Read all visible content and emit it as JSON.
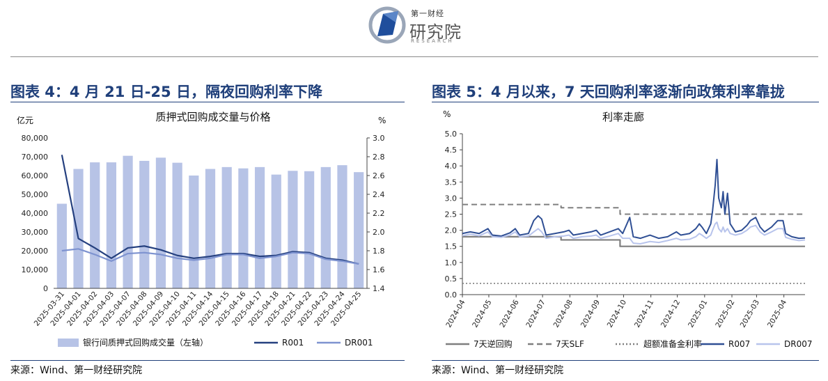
{
  "header": {
    "logo_small": "第一财经",
    "logo_big": "研究院",
    "logo_en": "RESEARCH"
  },
  "panels": [
    {
      "title": "图表 4：4 月 21 日-25 日，隔夜回购利率下降",
      "source": "来源：Wind、第一财经研究院"
    },
    {
      "title": "图表 5：4 月以来，7 天回购利率逐渐向政策利率靠拢",
      "source": "来源：Wind、第一财经研究院"
    }
  ],
  "chart_data": [
    {
      "type": "bar",
      "title": "质押式回购成交量与价格",
      "ylabel_left": "亿元",
      "ylabel_right": "%",
      "categories": [
        "2025-03-31",
        "2025-04-01",
        "2025-04-02",
        "2025-04-03",
        "2025-04-07",
        "2025-04-08",
        "2025-04-09",
        "2025-04-10",
        "2025-04-11",
        "2025-04-14",
        "2025-04-15",
        "2025-04-16",
        "2025-04-17",
        "2025-04-18",
        "2025-04-21",
        "2025-04-22",
        "2025-04-23",
        "2025-04-24",
        "2025-04-25"
      ],
      "ylim_left": [
        0,
        80000
      ],
      "yticks_left": [
        "0",
        "10,000",
        "20,000",
        "30,000",
        "40,000",
        "50,000",
        "60,000",
        "70,000",
        "80,000"
      ],
      "ylim_right": [
        1.4,
        3.0
      ],
      "yticks_right": [
        "1.4",
        "1.6",
        "1.8",
        "2.0",
        "2.2",
        "2.4",
        "2.6",
        "2.8",
        "3.0"
      ],
      "series": [
        {
          "name": "银行间质押式回购成交量（左轴）",
          "axis": "left",
          "kind": "bar",
          "color": "#b7c3e6",
          "values": [
            45000,
            63500,
            67000,
            67000,
            70500,
            67800,
            69500,
            66800,
            60000,
            63500,
            64500,
            63800,
            64500,
            60500,
            62500,
            62300,
            64500,
            65500,
            61800
          ]
        },
        {
          "name": "R001",
          "axis": "right",
          "kind": "line",
          "color": "#25407f",
          "values": [
            2.82,
            1.93,
            1.83,
            1.72,
            1.83,
            1.85,
            1.81,
            1.75,
            1.72,
            1.74,
            1.77,
            1.77,
            1.74,
            1.75,
            1.79,
            1.78,
            1.72,
            1.7,
            1.66
          ]
        },
        {
          "name": "DR001",
          "axis": "right",
          "kind": "line",
          "color": "#7e93d0",
          "values": [
            1.8,
            1.82,
            1.76,
            1.69,
            1.77,
            1.78,
            1.76,
            1.72,
            1.7,
            1.72,
            1.76,
            1.76,
            1.72,
            1.74,
            1.78,
            1.77,
            1.71,
            1.69,
            1.66
          ]
        }
      ],
      "legend_position": "bottom"
    },
    {
      "type": "line",
      "title": "利率走廊",
      "ylabel": "%",
      "ylim": [
        0,
        5.0
      ],
      "yticks": [
        "0.0",
        "0.5",
        "1.0",
        "1.5",
        "2.0",
        "2.5",
        "3.0",
        "3.5",
        "4.0",
        "4.5",
        "5.0"
      ],
      "xlim": [
        "2024-04-01",
        "2025-04-25"
      ],
      "xticks": [
        "2024-04",
        "2024-05",
        "2024-06",
        "2024-07",
        "2024-08",
        "2024-09",
        "2024-10",
        "2024-11",
        "2024-12",
        "2025-01",
        "2025-02",
        "2025-03",
        "2025-04"
      ],
      "series": [
        {
          "name": "7天逆回购",
          "style": "solid",
          "color": "#7f7f7f",
          "points": [
            [
              "2024-04-01",
              1.8
            ],
            [
              "2024-07-22",
              1.8
            ],
            [
              "2024-07-22",
              1.7
            ],
            [
              "2024-09-27",
              1.7
            ],
            [
              "2024-09-27",
              1.5
            ],
            [
              "2025-04-25",
              1.5
            ]
          ]
        },
        {
          "name": "7天SLF",
          "style": "dashed",
          "color": "#7f7f7f",
          "points": [
            [
              "2024-04-01",
              2.8
            ],
            [
              "2024-07-22",
              2.8
            ],
            [
              "2024-07-22",
              2.7
            ],
            [
              "2024-09-27",
              2.7
            ],
            [
              "2024-09-27",
              2.5
            ],
            [
              "2025-04-25",
              2.5
            ]
          ]
        },
        {
          "name": "超额准备金利率",
          "style": "dotted",
          "color": "#7f7f7f",
          "points": [
            [
              "2024-04-01",
              0.35
            ],
            [
              "2025-04-25",
              0.35
            ]
          ]
        },
        {
          "name": "R007",
          "style": "solid",
          "color": "#2f4f94",
          "points": [
            [
              "2024-04-01",
              1.9
            ],
            [
              "2024-04-10",
              1.95
            ],
            [
              "2024-04-20",
              1.9
            ],
            [
              "2024-04-30",
              2.05
            ],
            [
              "2024-05-05",
              1.85
            ],
            [
              "2024-05-15",
              1.82
            ],
            [
              "2024-05-25",
              1.92
            ],
            [
              "2024-05-31",
              2.05
            ],
            [
              "2024-06-05",
              1.85
            ],
            [
              "2024-06-15",
              1.9
            ],
            [
              "2024-06-21",
              2.3
            ],
            [
              "2024-06-26",
              2.45
            ],
            [
              "2024-06-30",
              2.35
            ],
            [
              "2024-07-05",
              1.85
            ],
            [
              "2024-07-15",
              1.9
            ],
            [
              "2024-07-25",
              1.95
            ],
            [
              "2024-07-31",
              2.0
            ],
            [
              "2024-08-05",
              1.85
            ],
            [
              "2024-08-15",
              1.9
            ],
            [
              "2024-08-25",
              1.95
            ],
            [
              "2024-08-31",
              2.0
            ],
            [
              "2024-09-05",
              1.85
            ],
            [
              "2024-09-15",
              1.95
            ],
            [
              "2024-09-25",
              2.05
            ],
            [
              "2024-09-30",
              1.9
            ],
            [
              "2024-10-08",
              2.4
            ],
            [
              "2024-10-12",
              1.8
            ],
            [
              "2024-10-20",
              1.75
            ],
            [
              "2024-10-31",
              1.85
            ],
            [
              "2024-11-10",
              1.75
            ],
            [
              "2024-11-20",
              1.8
            ],
            [
              "2024-11-30",
              1.95
            ],
            [
              "2024-12-05",
              1.85
            ],
            [
              "2024-12-15",
              1.9
            ],
            [
              "2024-12-22",
              2.05
            ],
            [
              "2024-12-26",
              2.2
            ],
            [
              "2024-12-29",
              2.1
            ],
            [
              "2025-01-03",
              1.9
            ],
            [
              "2025-01-08",
              2.2
            ],
            [
              "2025-01-10",
              2.6
            ],
            [
              "2025-01-13",
              3.4
            ],
            [
              "2025-01-15",
              4.2
            ],
            [
              "2025-01-17",
              3.0
            ],
            [
              "2025-01-20",
              2.7
            ],
            [
              "2025-01-22",
              3.2
            ],
            [
              "2025-01-24",
              2.5
            ],
            [
              "2025-01-27",
              3.15
            ],
            [
              "2025-01-30",
              2.2
            ],
            [
              "2025-02-05",
              1.95
            ],
            [
              "2025-02-12",
              2.0
            ],
            [
              "2025-02-18",
              2.15
            ],
            [
              "2025-02-22",
              2.3
            ],
            [
              "2025-02-28",
              2.4
            ],
            [
              "2025-03-05",
              2.1
            ],
            [
              "2025-03-10",
              1.95
            ],
            [
              "2025-03-18",
              2.1
            ],
            [
              "2025-03-25",
              2.3
            ],
            [
              "2025-03-31",
              2.3
            ],
            [
              "2025-04-03",
              1.9
            ],
            [
              "2025-04-10",
              1.8
            ],
            [
              "2025-04-18",
              1.75
            ],
            [
              "2025-04-25",
              1.76
            ]
          ]
        },
        {
          "name": "DR007",
          "style": "solid",
          "color": "#b8c4ec",
          "points": [
            [
              "2024-04-01",
              1.83
            ],
            [
              "2024-04-10",
              1.88
            ],
            [
              "2024-04-20",
              1.83
            ],
            [
              "2024-04-30",
              1.95
            ],
            [
              "2024-05-05",
              1.8
            ],
            [
              "2024-05-15",
              1.78
            ],
            [
              "2024-05-25",
              1.85
            ],
            [
              "2024-05-31",
              1.95
            ],
            [
              "2024-06-05",
              1.8
            ],
            [
              "2024-06-15",
              1.82
            ],
            [
              "2024-06-21",
              1.95
            ],
            [
              "2024-06-26",
              2.05
            ],
            [
              "2024-06-30",
              1.95
            ],
            [
              "2024-07-05",
              1.75
            ],
            [
              "2024-07-15",
              1.8
            ],
            [
              "2024-07-25",
              1.82
            ],
            [
              "2024-07-31",
              1.85
            ],
            [
              "2024-08-05",
              1.75
            ],
            [
              "2024-08-15",
              1.8
            ],
            [
              "2024-08-25",
              1.82
            ],
            [
              "2024-08-31",
              1.85
            ],
            [
              "2024-09-05",
              1.75
            ],
            [
              "2024-09-15",
              1.82
            ],
            [
              "2024-09-25",
              1.9
            ],
            [
              "2024-09-30",
              1.75
            ],
            [
              "2024-10-08",
              1.75
            ],
            [
              "2024-10-12",
              1.6
            ],
            [
              "2024-10-20",
              1.58
            ],
            [
              "2024-10-31",
              1.65
            ],
            [
              "2024-11-10",
              1.62
            ],
            [
              "2024-11-20",
              1.68
            ],
            [
              "2024-11-30",
              1.75
            ],
            [
              "2024-12-05",
              1.7
            ],
            [
              "2024-12-15",
              1.72
            ],
            [
              "2024-12-22",
              1.8
            ],
            [
              "2024-12-26",
              1.9
            ],
            [
              "2024-12-29",
              1.85
            ],
            [
              "2025-01-03",
              1.75
            ],
            [
              "2025-01-08",
              1.85
            ],
            [
              "2025-01-10",
              2.0
            ],
            [
              "2025-01-13",
              2.2
            ],
            [
              "2025-01-15",
              2.25
            ],
            [
              "2025-01-17",
              2.05
            ],
            [
              "2025-01-20",
              1.95
            ],
            [
              "2025-01-22",
              2.1
            ],
            [
              "2025-01-24",
              1.95
            ],
            [
              "2025-01-27",
              2.05
            ],
            [
              "2025-01-30",
              1.9
            ],
            [
              "2025-02-05",
              1.85
            ],
            [
              "2025-02-12",
              1.9
            ],
            [
              "2025-02-18",
              2.0
            ],
            [
              "2025-02-22",
              2.1
            ],
            [
              "2025-02-28",
              2.15
            ],
            [
              "2025-03-05",
              1.95
            ],
            [
              "2025-03-10",
              1.85
            ],
            [
              "2025-03-18",
              1.95
            ],
            [
              "2025-03-25",
              2.05
            ],
            [
              "2025-03-31",
              2.05
            ],
            [
              "2025-04-03",
              1.78
            ],
            [
              "2025-04-10",
              1.72
            ],
            [
              "2025-04-18",
              1.68
            ],
            [
              "2025-04-25",
              1.7
            ]
          ]
        }
      ],
      "legend_position": "bottom"
    }
  ]
}
